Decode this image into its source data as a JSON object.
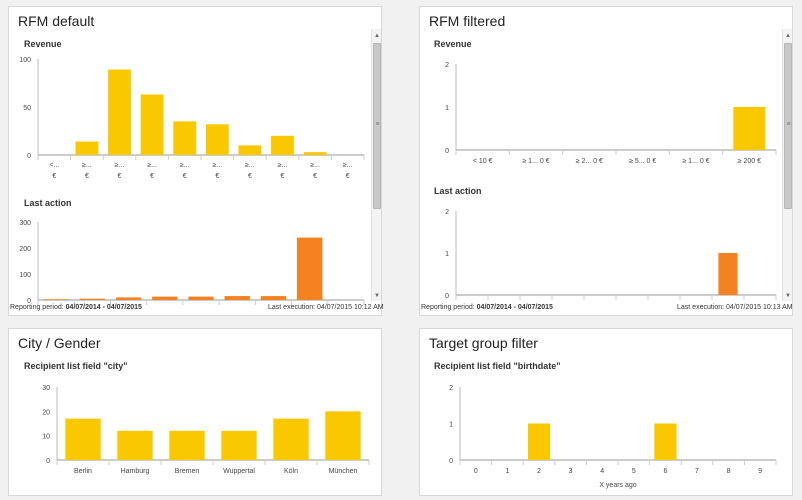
{
  "colors": {
    "yellow": "#f9c800",
    "orange": "#f58220",
    "axis": "#999999"
  },
  "panels": {
    "rfm_default": {
      "title": "RFM default",
      "footer_prefix": "Reporting period: ",
      "period": "04/07/2014 - 04/07/2015",
      "last_execution": "Last execution: 04/07/2015 10:12 AM"
    },
    "rfm_filtered": {
      "title": "RFM filtered",
      "footer_prefix": "Reporting period: ",
      "period": "04/07/2014 - 04/07/2015",
      "last_execution": "Last execution: 04/07/2015 10:13 AM"
    },
    "city_gender": {
      "title": "City / Gender"
    },
    "target_group": {
      "title": "Target group filter"
    }
  },
  "chart_data": [
    {
      "id": "rfm_default_revenue",
      "type": "bar",
      "title": "Revenue",
      "color": "#f9c800",
      "categories": [
        "<... €",
        "≥... €",
        "≥... €",
        "≥... €",
        "≥... €",
        "≥... €",
        "≥... €",
        "≥... €",
        "≥... €",
        "≥... €"
      ],
      "values": [
        0,
        14,
        89,
        63,
        35,
        32,
        10,
        20,
        3,
        0
      ],
      "ylim": [
        0,
        100
      ],
      "yticks": [
        0,
        50,
        100
      ]
    },
    {
      "id": "rfm_default_last_action",
      "type": "bar",
      "title": "Last action",
      "color": "#f58220",
      "categories": [
        "",
        "",
        "",
        "",
        "",
        "",
        "",
        "",
        ""
      ],
      "values": [
        3,
        5,
        10,
        13,
        13,
        15,
        15,
        240,
        0
      ],
      "ylim": [
        0,
        300
      ],
      "yticks": [
        0,
        100,
        200,
        300
      ]
    },
    {
      "id": "rfm_filtered_revenue",
      "type": "bar",
      "title": "Revenue",
      "color": "#f9c800",
      "categories": [
        "< 10 €",
        "≥ 1... 0 €",
        "≥ 2... 0 €",
        "≥ 5... 0 €",
        "≥ 1... 0 €",
        "≥ 200 €"
      ],
      "values": [
        0,
        0,
        0,
        0,
        0,
        1
      ],
      "ylim": [
        0,
        2
      ],
      "yticks": [
        0,
        1,
        2
      ]
    },
    {
      "id": "rfm_filtered_last_action",
      "type": "bar",
      "title": "Last action",
      "color": "#f58220",
      "categories": [
        "",
        "",
        "",
        "",
        "",
        "",
        "",
        "",
        "",
        ""
      ],
      "values": [
        0,
        0,
        0,
        0,
        0,
        0,
        0,
        0,
        1,
        0
      ],
      "ylim": [
        0,
        2
      ],
      "yticks": [
        0,
        1,
        2
      ]
    },
    {
      "id": "city",
      "type": "bar",
      "title": "Recipient list field \"city\"",
      "color": "#f9c800",
      "categories": [
        "Berlin",
        "Hamburg",
        "Bremen",
        "Wuppertal",
        "Köln",
        "München"
      ],
      "values": [
        17,
        12,
        12,
        12,
        17,
        20
      ],
      "ylim": [
        0,
        30
      ],
      "yticks": [
        0,
        10,
        20,
        30
      ]
    },
    {
      "id": "birthdate",
      "type": "bar",
      "title": "Recipient list field \"birthdate\"",
      "color": "#f9c800",
      "categories": [
        "0",
        "1",
        "2",
        "3",
        "4",
        "5",
        "6",
        "7",
        "8",
        "9"
      ],
      "values": [
        0,
        0,
        1,
        0,
        0,
        0,
        1,
        0,
        0,
        0
      ],
      "xlabel": "X years ago",
      "ylim": [
        0,
        2
      ],
      "yticks": [
        0,
        1,
        2
      ]
    }
  ]
}
